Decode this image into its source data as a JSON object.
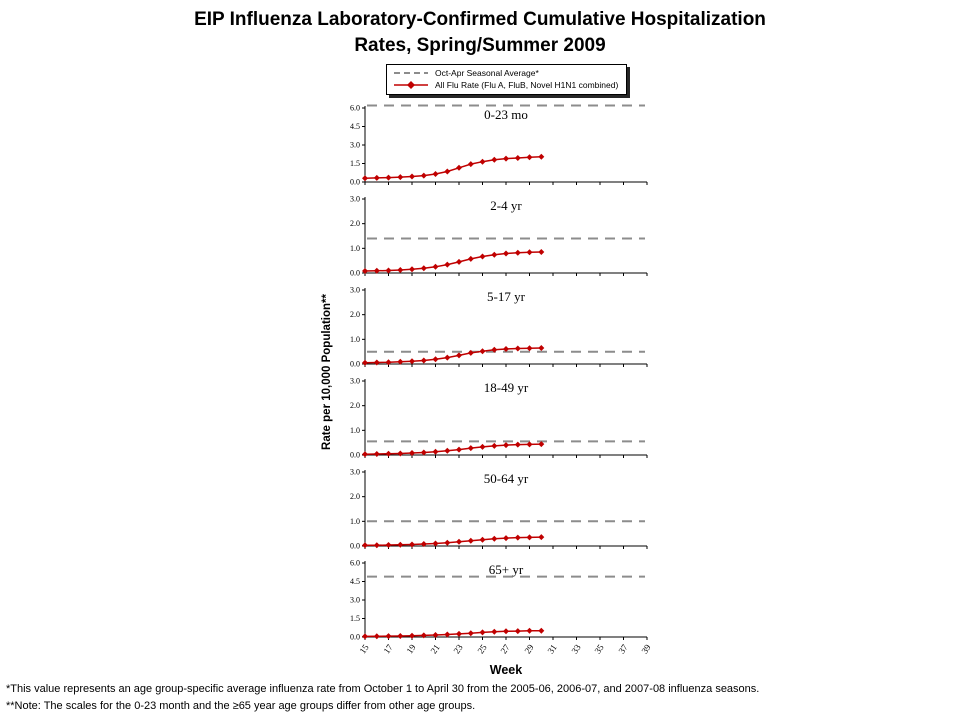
{
  "title": {
    "line1": "EIP Influenza Laboratory-Confirmed Cumulative Hospitalization",
    "line2": "Rates, Spring/Summer 2009"
  },
  "footnotes": [
    "*This value represents an age group-specific average influenza rate from October 1 to April 30 from the 2005-06, 2006-07, and 2007-08 influenza seasons.",
    "**Note: The scales for the 0-23 month and the ≥65 year age groups differ from other age groups."
  ],
  "chart_data": {
    "type": "line",
    "xlabel": "Week",
    "ylabel": "Rate per 10,000 Population**",
    "legend": [
      "Oct-Apr Seasonal Average*",
      "All Flu Rate (Flu A, FluB, Novel H1N1 combined)"
    ],
    "colors": {
      "flu_line": "#c00000",
      "seasonal_line": "#8c8c8c"
    },
    "x_axis_range": [
      15,
      39
    ],
    "x_tick_labels": [
      15,
      17,
      19,
      21,
      23,
      25,
      27,
      29,
      31,
      33,
      35,
      37,
      39
    ],
    "x_weeks": [
      15,
      16,
      17,
      18,
      19,
      20,
      21,
      22,
      23,
      24,
      25,
      26,
      27,
      28,
      29,
      30
    ],
    "panels": [
      {
        "label": "0-23 mo",
        "ylim": [
          0,
          6.0
        ],
        "yticks": [
          0.0,
          1.5,
          3.0,
          4.5,
          6.0
        ],
        "seasonal_average": 6.2,
        "values": [
          0.3,
          0.33,
          0.36,
          0.4,
          0.45,
          0.52,
          0.65,
          0.85,
          1.15,
          1.45,
          1.65,
          1.8,
          1.9,
          1.95,
          2.0,
          2.05
        ]
      },
      {
        "label": "2-4 yr",
        "ylim": [
          0,
          3.0
        ],
        "yticks": [
          0.0,
          1.0,
          2.0,
          3.0
        ],
        "seasonal_average": 1.4,
        "values": [
          0.08,
          0.09,
          0.1,
          0.12,
          0.15,
          0.19,
          0.25,
          0.34,
          0.45,
          0.57,
          0.67,
          0.74,
          0.79,
          0.82,
          0.84,
          0.85
        ]
      },
      {
        "label": "5-17 yr",
        "ylim": [
          0,
          3.0
        ],
        "yticks": [
          0.0,
          1.0,
          2.0,
          3.0
        ],
        "seasonal_average": 0.5,
        "values": [
          0.05,
          0.06,
          0.07,
          0.09,
          0.11,
          0.14,
          0.19,
          0.26,
          0.35,
          0.45,
          0.52,
          0.58,
          0.61,
          0.63,
          0.64,
          0.65
        ]
      },
      {
        "label": "18-49 yr",
        "ylim": [
          0,
          3.0
        ],
        "yticks": [
          0.0,
          1.0,
          2.0,
          3.0
        ],
        "seasonal_average": 0.55,
        "values": [
          0.03,
          0.04,
          0.05,
          0.06,
          0.08,
          0.1,
          0.13,
          0.17,
          0.22,
          0.28,
          0.33,
          0.37,
          0.4,
          0.42,
          0.43,
          0.44
        ]
      },
      {
        "label": "50-64 yr",
        "ylim": [
          0,
          3.0
        ],
        "yticks": [
          0.0,
          1.0,
          2.0,
          3.0
        ],
        "seasonal_average": 1.0,
        "values": [
          0.03,
          0.03,
          0.04,
          0.05,
          0.06,
          0.08,
          0.1,
          0.13,
          0.17,
          0.21,
          0.25,
          0.29,
          0.32,
          0.34,
          0.35,
          0.36
        ]
      },
      {
        "label": "65+ yr",
        "ylim": [
          0,
          6.0
        ],
        "yticks": [
          0.0,
          1.5,
          3.0,
          4.5,
          6.0
        ],
        "seasonal_average": 4.9,
        "values": [
          0.05,
          0.06,
          0.07,
          0.08,
          0.1,
          0.13,
          0.16,
          0.2,
          0.25,
          0.31,
          0.37,
          0.42,
          0.46,
          0.48,
          0.5,
          0.51
        ]
      }
    ]
  }
}
